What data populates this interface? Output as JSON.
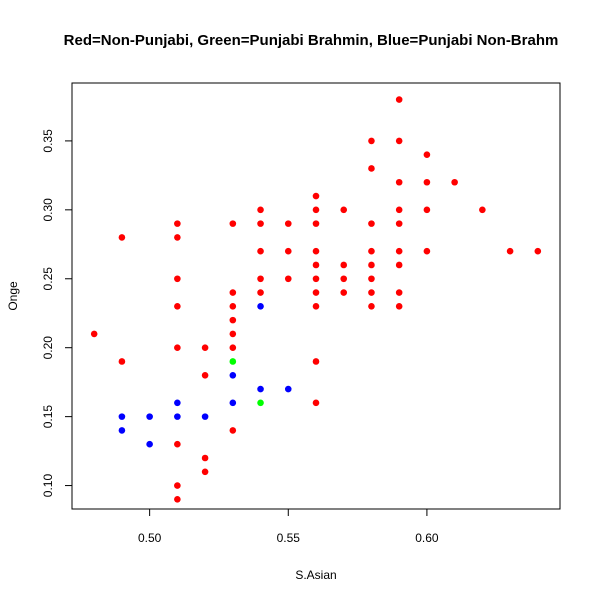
{
  "chart_data": {
    "type": "scatter",
    "title": "Red=Non-Punjabi, Green=Punjabi Brahmin, Blue=Punjabi Non-Brahm",
    "xlabel": "S.Asian",
    "ylabel": "Onge",
    "xlim": [
      0.472,
      0.648
    ],
    "ylim": [
      0.083,
      0.392
    ],
    "x_ticks": [
      "0.50",
      "0.55",
      "0.60"
    ],
    "y_ticks": [
      "0.10",
      "0.15",
      "0.20",
      "0.25",
      "0.30",
      "0.35"
    ],
    "grid": false,
    "legend": "none",
    "series": [
      {
        "color": "#ff0000",
        "points": [
          [
            0.48,
            0.21
          ],
          [
            0.49,
            0.28
          ],
          [
            0.49,
            0.19
          ],
          [
            0.51,
            0.29
          ],
          [
            0.51,
            0.28
          ],
          [
            0.51,
            0.25
          ],
          [
            0.51,
            0.23
          ],
          [
            0.51,
            0.2
          ],
          [
            0.51,
            0.13
          ],
          [
            0.51,
            0.1
          ],
          [
            0.51,
            0.09
          ],
          [
            0.52,
            0.2
          ],
          [
            0.52,
            0.18
          ],
          [
            0.52,
            0.12
          ],
          [
            0.52,
            0.11
          ],
          [
            0.53,
            0.29
          ],
          [
            0.53,
            0.24
          ],
          [
            0.53,
            0.23
          ],
          [
            0.53,
            0.22
          ],
          [
            0.53,
            0.21
          ],
          [
            0.53,
            0.2
          ],
          [
            0.53,
            0.14
          ],
          [
            0.54,
            0.3
          ],
          [
            0.54,
            0.29
          ],
          [
            0.54,
            0.27
          ],
          [
            0.54,
            0.25
          ],
          [
            0.54,
            0.24
          ],
          [
            0.55,
            0.29
          ],
          [
            0.55,
            0.27
          ],
          [
            0.55,
            0.25
          ],
          [
            0.56,
            0.31
          ],
          [
            0.56,
            0.3
          ],
          [
            0.56,
            0.29
          ],
          [
            0.56,
            0.27
          ],
          [
            0.56,
            0.26
          ],
          [
            0.56,
            0.25
          ],
          [
            0.56,
            0.24
          ],
          [
            0.56,
            0.23
          ],
          [
            0.56,
            0.19
          ],
          [
            0.56,
            0.16
          ],
          [
            0.57,
            0.3
          ],
          [
            0.57,
            0.26
          ],
          [
            0.57,
            0.25
          ],
          [
            0.57,
            0.24
          ],
          [
            0.58,
            0.35
          ],
          [
            0.58,
            0.33
          ],
          [
            0.58,
            0.29
          ],
          [
            0.58,
            0.27
          ],
          [
            0.58,
            0.26
          ],
          [
            0.58,
            0.25
          ],
          [
            0.58,
            0.24
          ],
          [
            0.58,
            0.23
          ],
          [
            0.59,
            0.38
          ],
          [
            0.59,
            0.35
          ],
          [
            0.59,
            0.32
          ],
          [
            0.59,
            0.3
          ],
          [
            0.59,
            0.29
          ],
          [
            0.59,
            0.27
          ],
          [
            0.59,
            0.26
          ],
          [
            0.59,
            0.24
          ],
          [
            0.59,
            0.23
          ],
          [
            0.6,
            0.34
          ],
          [
            0.6,
            0.32
          ],
          [
            0.6,
            0.3
          ],
          [
            0.6,
            0.27
          ],
          [
            0.61,
            0.32
          ],
          [
            0.62,
            0.3
          ],
          [
            0.63,
            0.27
          ],
          [
            0.64,
            0.27
          ]
        ]
      },
      {
        "color": "#00ff00",
        "points": [
          [
            0.53,
            0.19
          ],
          [
            0.54,
            0.16
          ]
        ]
      },
      {
        "color": "#0000ff",
        "points": [
          [
            0.49,
            0.15
          ],
          [
            0.49,
            0.14
          ],
          [
            0.5,
            0.15
          ],
          [
            0.5,
            0.13
          ],
          [
            0.51,
            0.16
          ],
          [
            0.51,
            0.15
          ],
          [
            0.52,
            0.15
          ],
          [
            0.53,
            0.18
          ],
          [
            0.53,
            0.16
          ],
          [
            0.54,
            0.23
          ],
          [
            0.54,
            0.17
          ],
          [
            0.55,
            0.17
          ]
        ]
      }
    ]
  }
}
